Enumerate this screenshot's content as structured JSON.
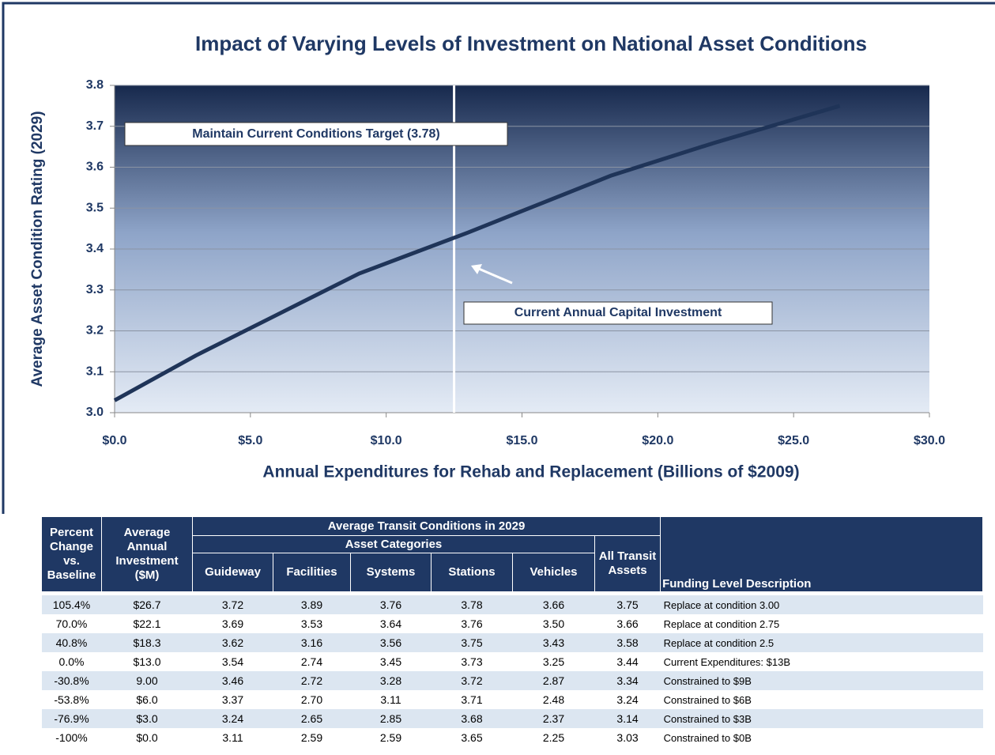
{
  "chart_data": {
    "type": "line",
    "title": "Impact of Varying Levels of Investment on National Asset Conditions",
    "x_label": "Annual Expenditures for Rehab and Replacement (Billions of $2009)",
    "y_label": "Average Asset Condition Rating (2029)",
    "x": [
      0,
      3,
      6,
      9,
      13,
      18.3,
      22.1,
      26.7
    ],
    "values": [
      3.03,
      3.14,
      3.24,
      3.34,
      3.44,
      3.58,
      3.66,
      3.75
    ],
    "color": "#1f3458",
    "xlim": [
      0,
      30
    ],
    "xticks": [
      {
        "value": 0,
        "label": "$0.0"
      },
      {
        "value": 5,
        "label": "$5.0"
      },
      {
        "value": 10,
        "label": "$10.0"
      },
      {
        "value": 15,
        "label": "$15.0"
      },
      {
        "value": 20,
        "label": "$20.0"
      },
      {
        "value": 25,
        "label": "$25.0"
      },
      {
        "value": 30,
        "label": "$30.0"
      }
    ],
    "ylim": [
      3.0,
      3.8
    ],
    "yticks": [
      {
        "value": 3.0,
        "label": "3.0"
      },
      3.1,
      3.2,
      3.3,
      3.4,
      3.5,
      3.6,
      3.7,
      3.8
    ],
    "grid": true,
    "vline_x": 12.5,
    "annotations": [
      "Maintain Current Conditions Target (3.78)",
      "Current Annual Capital Investment"
    ]
  },
  "table": {
    "header": {
      "percent_change": "Percent Change vs. Baseline",
      "investment": "Average Annual Investment ($M)",
      "group": "Average Transit Conditions in 2029",
      "subgroup": "Asset Categories",
      "columns": [
        "Guideway",
        "Facilities",
        "Systems",
        "Stations",
        "Vehicles"
      ],
      "all": "All Transit Assets",
      "description": "Funding Level Description"
    },
    "rows": [
      [
        "105.4%",
        "$26.7",
        "3.72",
        "3.89",
        "3.76",
        "3.78",
        "3.66",
        "3.75",
        "Replace at condition 3.00"
      ],
      [
        "70.0%",
        "$22.1",
        "3.69",
        "3.53",
        "3.64",
        "3.76",
        "3.50",
        "3.66",
        "Replace at condition 2.75"
      ],
      [
        "40.8%",
        "$18.3",
        "3.62",
        "3.16",
        "3.56",
        "3.75",
        "3.43",
        "3.58",
        "Replace at condition 2.5"
      ],
      [
        "0.0%",
        "$13.0",
        "3.54",
        "2.74",
        "3.45",
        "3.73",
        "3.25",
        "3.44",
        "Current Expenditures: $13B"
      ],
      [
        "-30.8%",
        "9.00",
        "3.46",
        "2.72",
        "3.28",
        "3.72",
        "2.87",
        "3.34",
        "Constrained to $9B"
      ],
      [
        "-53.8%",
        "$6.0",
        "3.37",
        "2.70",
        "3.11",
        "3.71",
        "2.48",
        "3.24",
        "Constrained to $6B"
      ],
      [
        "-76.9%",
        "$3.0",
        "3.24",
        "2.65",
        "2.85",
        "3.68",
        "2.37",
        "3.14",
        "Constrained to $3B"
      ],
      [
        "-100%",
        "$0.0",
        "3.11",
        "2.59",
        "2.59",
        "3.65",
        "2.25",
        "3.03",
        "Constrained to $0B"
      ]
    ]
  }
}
